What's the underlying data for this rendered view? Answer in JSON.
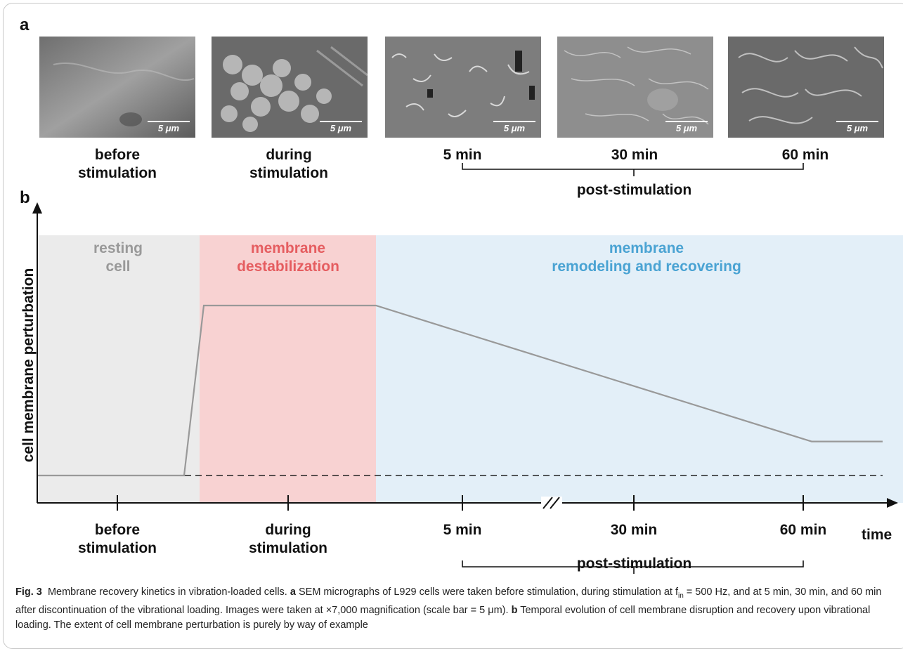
{
  "panel_a": {
    "letter": "a",
    "images": [
      {
        "label": "before\nstimulation",
        "scale": "5 μm"
      },
      {
        "label": "during\nstimulation",
        "scale": "5 μm"
      },
      {
        "label": "5 min",
        "scale": "5 μm"
      },
      {
        "label": "30 min",
        "scale": "5 μm"
      },
      {
        "label": "60 min",
        "scale": "5 μm"
      }
    ],
    "post_label": "post-stimulation"
  },
  "panel_b": {
    "letter": "b",
    "phases": [
      {
        "label": "resting\ncell",
        "color": "#ebebeb",
        "text_color": "#999999"
      },
      {
        "label": "membrane\ndestabilization",
        "color": "#f8d2d2",
        "text_color": "#e55d60"
      },
      {
        "label": "membrane\nremodeling and recovering",
        "color": "#e3eff8",
        "text_color": "#4aa3d3"
      }
    ],
    "ylabel": "cell membrane perturbation",
    "xlabel": "time",
    "ticks": [
      {
        "label": "before\nstimulation"
      },
      {
        "label": "during\nstimulation"
      },
      {
        "label": "5 min"
      },
      {
        "label": "30 min"
      },
      {
        "label": "60 min"
      }
    ],
    "post_label": "post-stimulation"
  },
  "chart_data": {
    "type": "line",
    "title": "",
    "xlabel": "time",
    "ylabel": "cell membrane perturbation",
    "categories": [
      "before stimulation",
      "during stimulation",
      "5 min",
      "30 min",
      "60 min"
    ],
    "series": [
      {
        "values": [
          0,
          1,
          0.82,
          0.54,
          0.2
        ]
      }
    ],
    "baseline": 0,
    "axis_break": "between 5 min and 30 min",
    "grid": false
  },
  "caption": {
    "fig": "Fig. 3",
    "title": "Membrane recovery kinetics in vibration-loaded cells.",
    "a_letter": "a",
    "a_text_1": "SEM micrographs of L929 cells were taken before stimulation, during stimulation at f",
    "a_sub": "in",
    "a_text_2": " = 500 Hz, and at 5 min, 30 min, and 60 min after discontinuation of the vibrational loading. Images were taken at ×7,000 magnification (scale bar = 5 μm).",
    "b_letter": "b",
    "b_text": "Temporal evolution of cell membrane disruption and recovery upon vibrational loading. The extent of cell membrane perturbation is purely by way of example"
  }
}
